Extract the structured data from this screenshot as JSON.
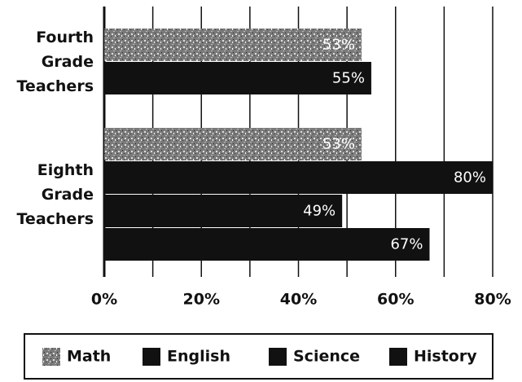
{
  "chart_data": {
    "type": "bar",
    "orientation": "horizontal",
    "categories": [
      "Fourth Grade Teachers",
      "Eighth Grade Teachers"
    ],
    "series": [
      {
        "name": "Math",
        "color": "#7a7a7a",
        "values": [
          53,
          53
        ],
        "value_labels": [
          "53%",
          "53%"
        ]
      },
      {
        "name": "English",
        "color": "#111111",
        "values": [
          55,
          80
        ],
        "value_labels": [
          "55%",
          "80%"
        ]
      },
      {
        "name": "Science",
        "color": "#111111",
        "values": [
          null,
          49
        ],
        "value_labels": [
          null,
          "49%"
        ]
      },
      {
        "name": "History",
        "color": "#111111",
        "values": [
          null,
          67
        ],
        "value_labels": [
          null,
          "67%"
        ]
      }
    ],
    "xlim": [
      0,
      80
    ],
    "xticks": [
      {
        "value": 0,
        "label": "0%"
      },
      {
        "value": 20,
        "label": "20%"
      },
      {
        "value": 40,
        "label": "40%"
      },
      {
        "value": 60,
        "label": "60%"
      },
      {
        "value": 80,
        "label": "80%"
      }
    ],
    "minor_xticks": [
      10,
      30,
      50,
      70
    ],
    "grid": true,
    "legend": "bottom"
  }
}
